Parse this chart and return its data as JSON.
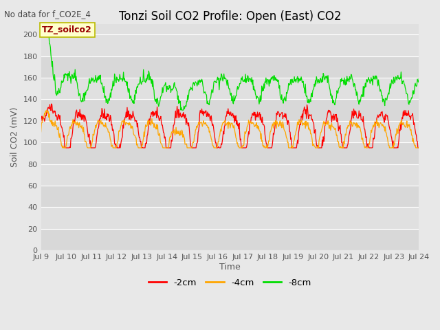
{
  "title": "Tonzi Soil CO2 Profile: Open (East) CO2",
  "subtitle": "No data for f_CO2E_4",
  "ylabel": "Soil CO2 (mV)",
  "xlabel": "Time",
  "annotation": "TZ_soilco2",
  "ylim": [
    0,
    210
  ],
  "yticks": [
    0,
    20,
    40,
    60,
    80,
    100,
    120,
    140,
    160,
    180,
    200
  ],
  "x_start": 9.0,
  "x_end": 24.0,
  "xtick_labels": [
    "Jul 9",
    "Jul 10",
    "Jul 11",
    "Jul 12",
    "Jul 13",
    "Jul 14",
    "Jul 15",
    "Jul 16",
    "Jul 17",
    "Jul 18",
    "Jul 19",
    "Jul 20",
    "Jul 21",
    "Jul 22",
    "Jul 23",
    "Jul 24"
  ],
  "xtick_positions": [
    9,
    10,
    11,
    12,
    13,
    14,
    15,
    16,
    17,
    18,
    19,
    20,
    21,
    22,
    23,
    24
  ],
  "outer_bg": "#e8e8e8",
  "plot_bg": "#e0e0e0",
  "stripe_bg": "#d0d0d0",
  "line_colors": {
    "2cm": "#ff0000",
    "4cm": "#ffa500",
    "8cm": "#00dd00"
  },
  "legend_labels": [
    "-2cm",
    "-4cm",
    "-8cm"
  ],
  "title_fontsize": 12,
  "label_fontsize": 9,
  "tick_fontsize": 8,
  "annotation_color": "#990000"
}
